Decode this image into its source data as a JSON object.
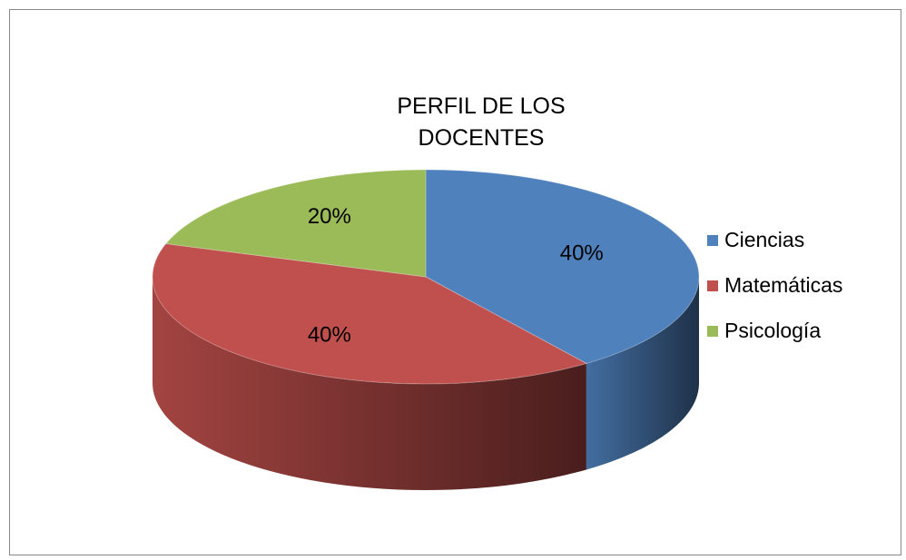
{
  "chart_data": {
    "type": "pie",
    "title": "PERFIL DE LOS DOCENTES",
    "categories": [
      "Ciencias",
      "Matemáticas",
      "Psicología"
    ],
    "values": [
      40,
      40,
      20
    ],
    "value_labels": [
      "40%",
      "40%",
      "20%"
    ],
    "colors": [
      "#4f81bd",
      "#c0504d",
      "#9bbb59"
    ],
    "legend": "right"
  }
}
